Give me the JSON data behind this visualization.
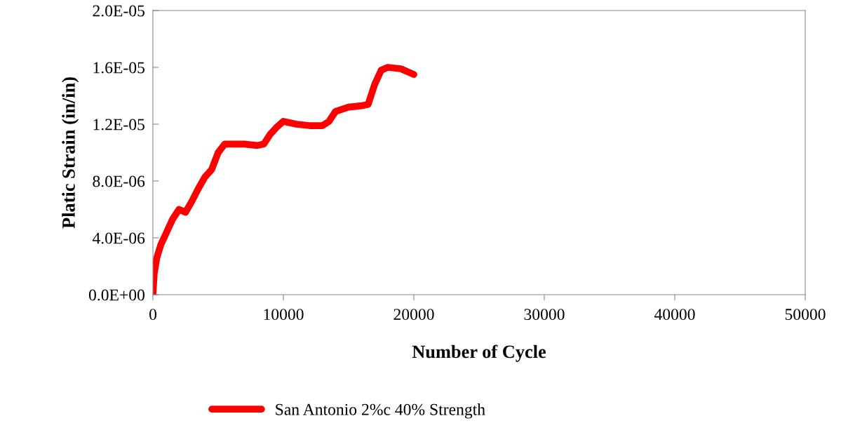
{
  "chart_data": {
    "type": "line",
    "xlabel": "Number of Cycle",
    "ylabel": "Platic Strain (in/in)",
    "x": [
      0,
      100,
      300,
      600,
      1000,
      1500,
      2000,
      2500,
      3000,
      3500,
      4000,
      4500,
      5000,
      5500,
      6000,
      7000,
      8000,
      8500,
      9000,
      9500,
      10000,
      11000,
      12000,
      13000,
      13500,
      14000,
      15000,
      16000,
      16500,
      17000,
      17500,
      18000,
      19000,
      20000
    ],
    "series": [
      {
        "name": "San Antonio 2%c 40% Strength",
        "color": "#ff0000",
        "values": [
          0,
          1.5e-06,
          2.6e-06,
          3.5e-06,
          4.3e-06,
          5.3e-06,
          6e-06,
          5.8e-06,
          6.6e-06,
          7.5e-06,
          8.3e-06,
          8.8e-06,
          1e-05,
          1.06e-05,
          1.06e-05,
          1.06e-05,
          1.05e-05,
          1.06e-05,
          1.13e-05,
          1.18e-05,
          1.22e-05,
          1.2e-05,
          1.19e-05,
          1.19e-05,
          1.22e-05,
          1.29e-05,
          1.32e-05,
          1.33e-05,
          1.34e-05,
          1.48e-05,
          1.58e-05,
          1.6e-05,
          1.59e-05,
          1.55e-05
        ]
      }
    ],
    "xlim": [
      0,
      50000
    ],
    "xticks": [
      0,
      10000,
      20000,
      30000,
      40000,
      50000
    ],
    "ylim": [
      0,
      2e-05
    ],
    "yticks": [
      {
        "value": 0,
        "label": "0.0E+00"
      },
      {
        "value": 4e-06,
        "label": "4.0E-06"
      },
      {
        "value": 8e-06,
        "label": "8.0E-06"
      },
      {
        "value": 1.2e-05,
        "label": "1.2E-05"
      },
      {
        "value": 1.6e-05,
        "label": "1.6E-05"
      },
      {
        "value": 2e-05,
        "label": "2.0E-05"
      }
    ],
    "grid": false,
    "legend": "bottom",
    "marker": "none",
    "line_style": "solid"
  }
}
